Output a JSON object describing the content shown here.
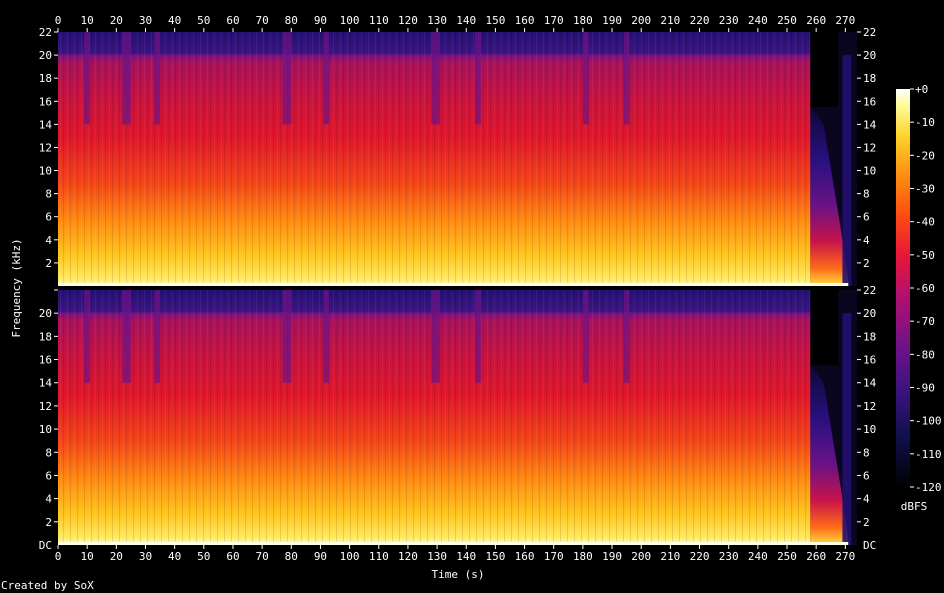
{
  "footer": {
    "credit": "Created by SoX"
  },
  "chart_data": {
    "type": "heatmap",
    "title": "",
    "xlabel": "Time (s)",
    "ylabel": "Frequency (kHz)",
    "colorbar_label": "dBFS",
    "xlim": [
      0,
      274
    ],
    "ylim_khz": [
      0,
      22
    ],
    "x_ticks": [
      0,
      10,
      20,
      30,
      40,
      50,
      60,
      70,
      80,
      90,
      100,
      110,
      120,
      130,
      140,
      150,
      160,
      170,
      180,
      190,
      200,
      210,
      220,
      230,
      240,
      250,
      260,
      270
    ],
    "y_ticks": [
      2,
      4,
      6,
      8,
      10,
      12,
      14,
      16,
      18,
      20,
      22
    ],
    "y_bottom_label": "DC",
    "colorbar_ticks": [
      "+0",
      "-10",
      "-20",
      "-30",
      "-40",
      "-50",
      "-60",
      "-70",
      "-80",
      "-90",
      "-100",
      "-110",
      "-120"
    ],
    "colorbar_range_db": [
      -120,
      0
    ],
    "channels": 2,
    "audio_end_s": 258,
    "fade_end_s": 271,
    "lowpass_cutoff_khz": 20,
    "drop_segments_s": [
      [
        9,
        11
      ],
      [
        22,
        25
      ],
      [
        33,
        35
      ],
      [
        77,
        80
      ],
      [
        91,
        93
      ],
      [
        128,
        131
      ],
      [
        143,
        145
      ],
      [
        180,
        182
      ],
      [
        194,
        196
      ]
    ],
    "colors": {
      "background": "#000000",
      "text": "#ffffff"
    }
  }
}
